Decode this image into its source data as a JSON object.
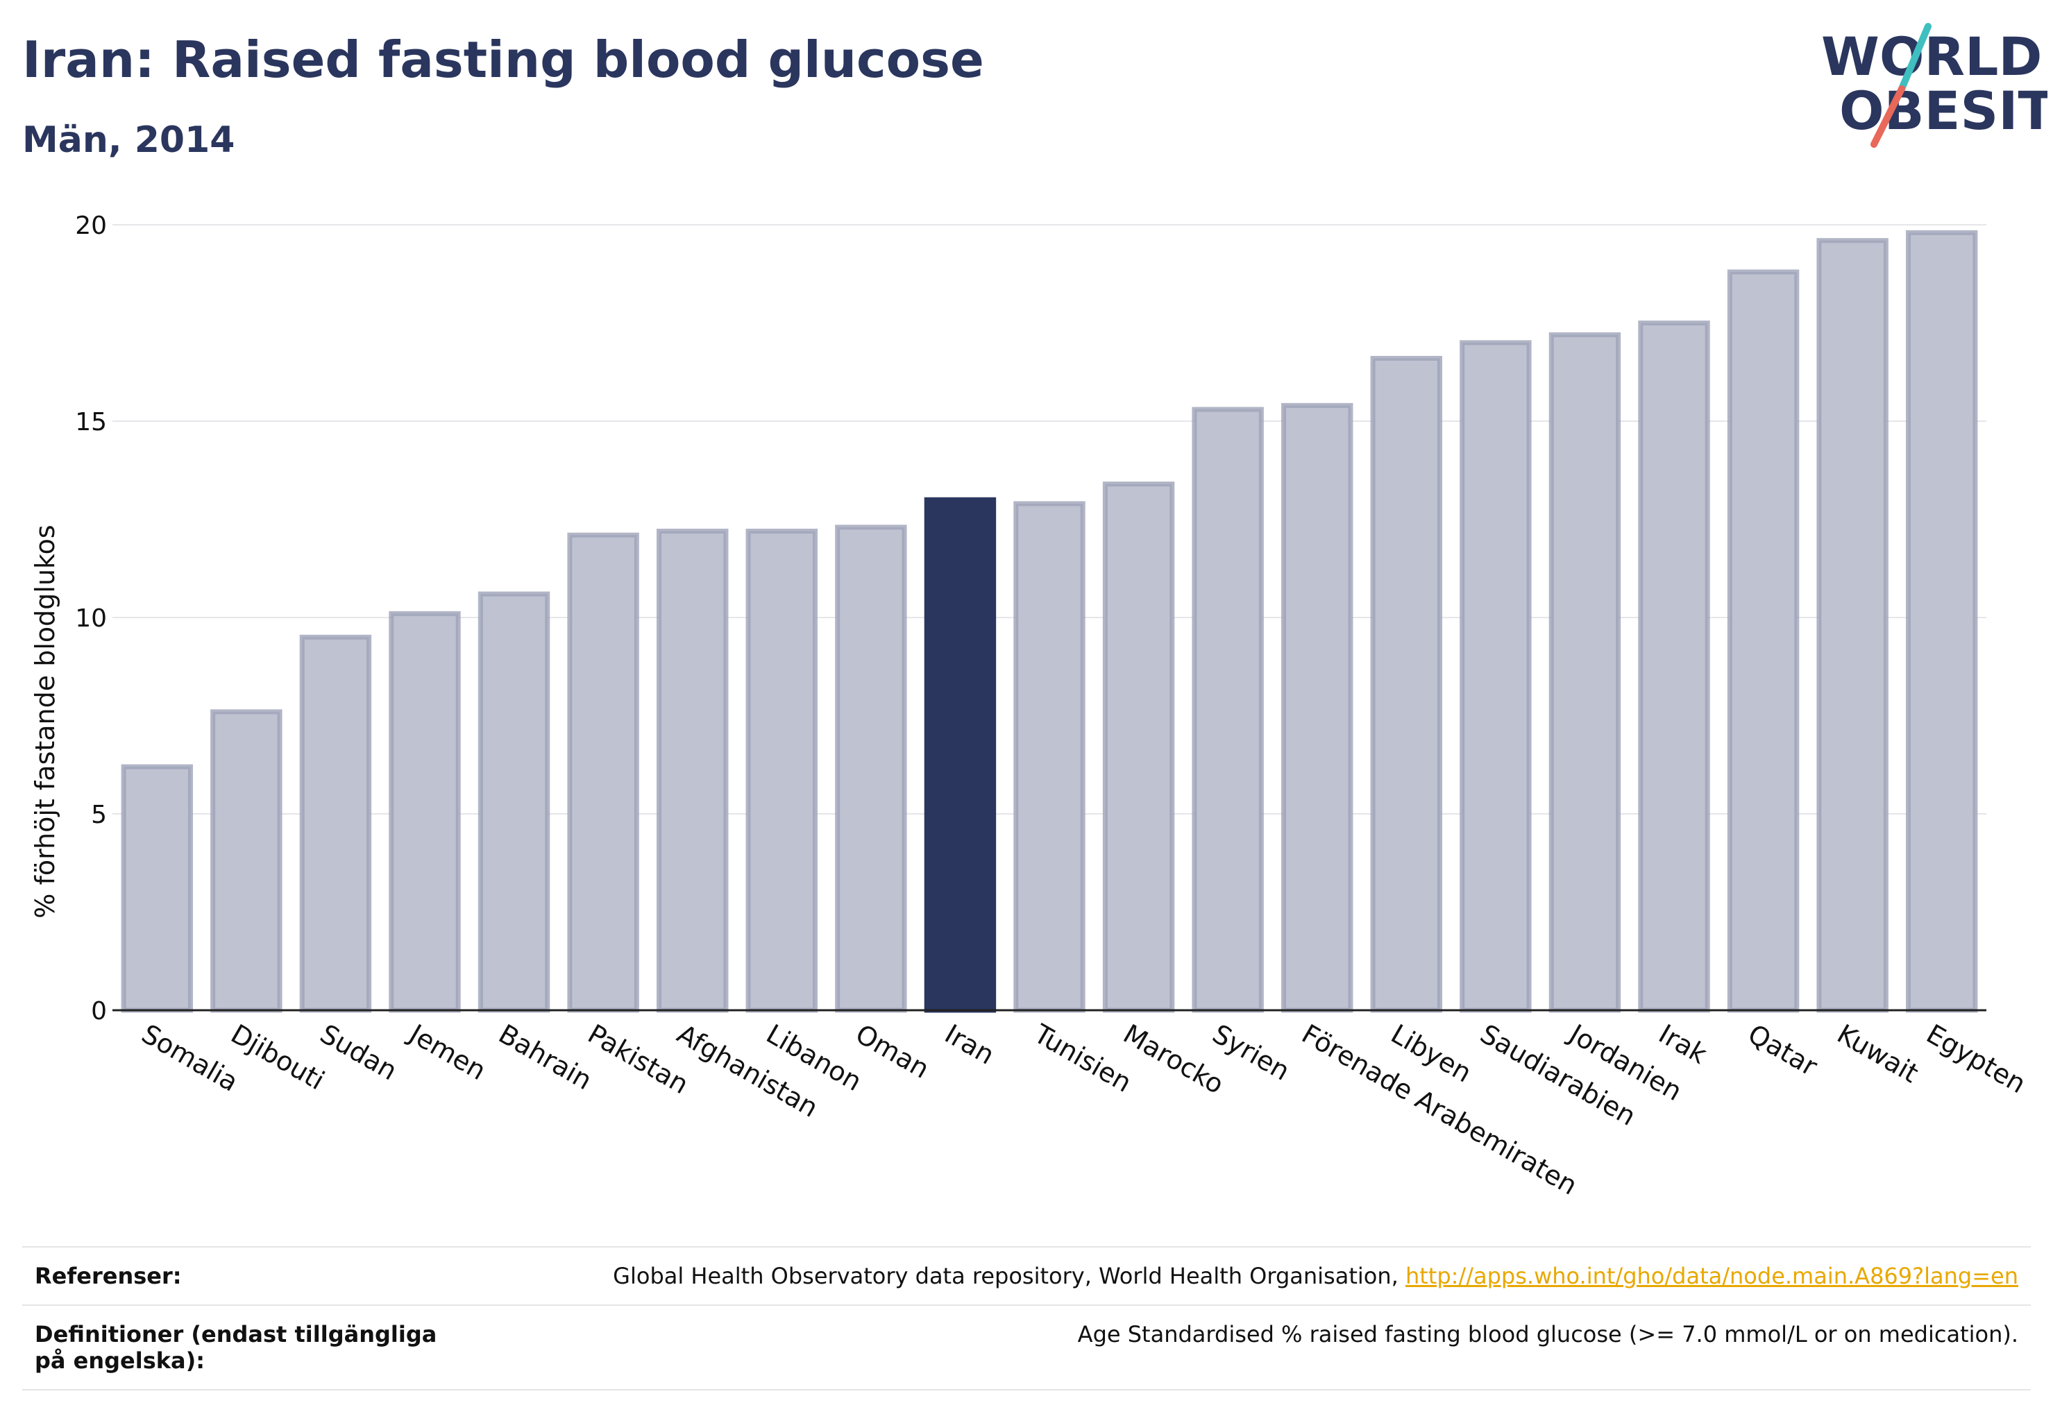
{
  "header": {
    "title": "Iran: Raised fasting blood glucose",
    "subtitle": "Män, 2014"
  },
  "logo": {
    "line1": "WORLD",
    "line2": "OBESITY",
    "colors": {
      "text": "#2b365e",
      "slash_top": "#3fbfbf",
      "slash_bottom": "#e8685a"
    }
  },
  "chart_data": {
    "type": "bar",
    "title": "Iran: Raised fasting blood glucose",
    "subtitle": "Män, 2014",
    "xlabel": "",
    "ylabel": "% förhöjt fastande blodglukos",
    "ylim": [
      0,
      20
    ],
    "yticks": [
      0,
      5,
      10,
      15,
      20
    ],
    "grid": true,
    "highlight": "Iran",
    "colors": {
      "bar": "#bfc2d0",
      "bar_edge": "#9da2b8",
      "highlight": "#2b365e"
    },
    "categories": [
      "Somalia",
      "Djibouti",
      "Sudan",
      "Jemen",
      "Bahrain",
      "Pakistan",
      "Afghanistan",
      "Libanon",
      "Oman",
      "Iran",
      "Tunisien",
      "Marocko",
      "Syrien",
      "Förenade Arabemiraten",
      "Libyen",
      "Saudiarabien",
      "Jordanien",
      "Irak",
      "Qatar",
      "Kuwait",
      "Egypten"
    ],
    "values": [
      6.2,
      7.6,
      9.5,
      10.1,
      10.6,
      12.1,
      12.2,
      12.2,
      12.3,
      13.0,
      12.9,
      13.4,
      15.3,
      15.4,
      16.6,
      17.0,
      17.2,
      17.5,
      18.8,
      19.6,
      19.8
    ]
  },
  "references": {
    "label": "Referenser:",
    "text": "Global Health Observatory data repository, World Health Organisation, ",
    "link": "http://apps.who.int/gho/data/node.main.A869?lang=en"
  },
  "definitions": {
    "label": "Definitioner (endast tillgängliga på engelska):",
    "text": "Age Standardised % raised fasting blood glucose (>= 7.0 mmol/L or on medication)."
  }
}
